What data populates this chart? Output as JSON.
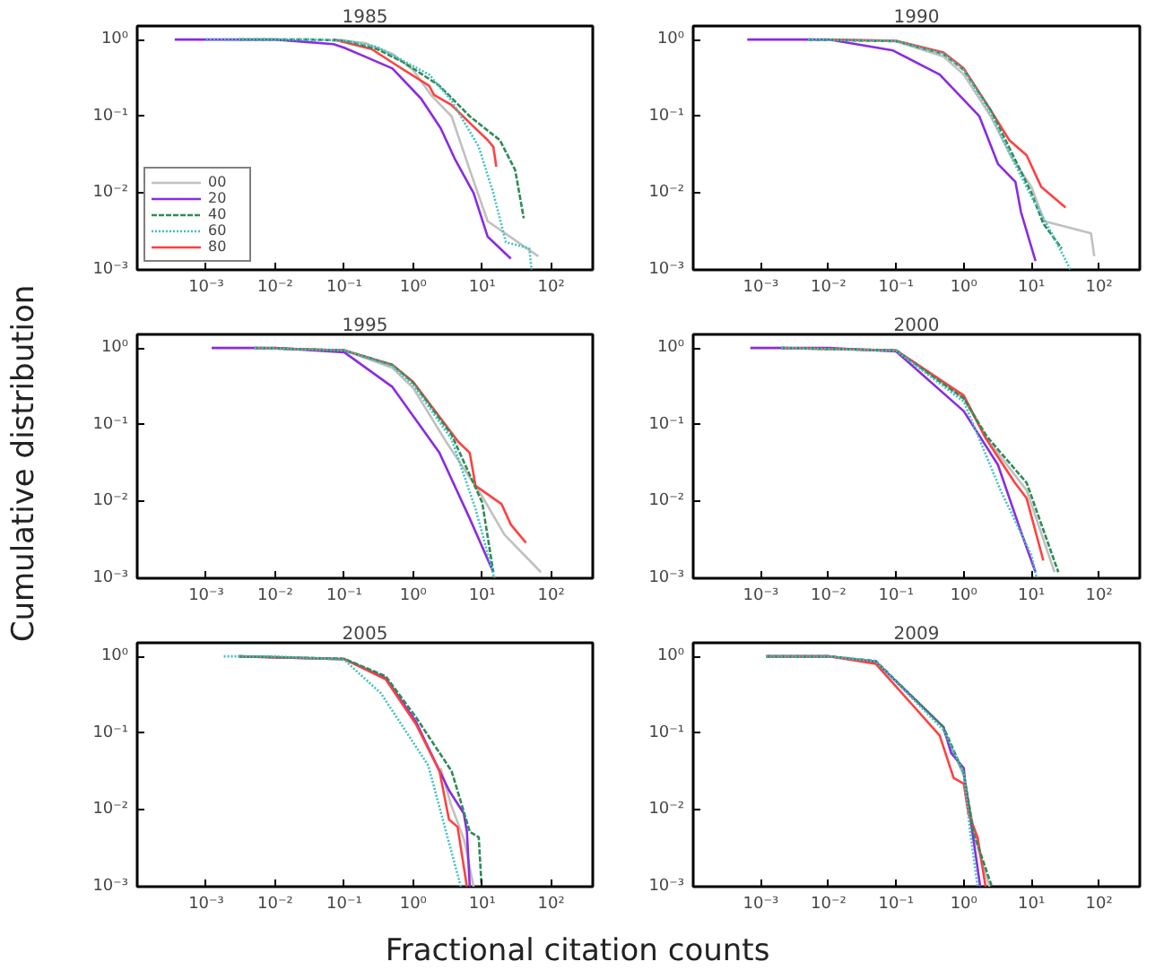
{
  "chart_data": [
    {
      "type": "line",
      "title": "1985",
      "log": "xy",
      "xlim": [
        0.0001,
        400
      ],
      "ylim": [
        0.001,
        1.5
      ],
      "xticks": [
        {
          "value": 0.001,
          "label": "10⁻³"
        },
        {
          "value": 0.01,
          "label": "10⁻²"
        },
        {
          "value": 0.1,
          "label": "10⁻¹"
        },
        {
          "value": 1,
          "label": "10⁰"
        },
        {
          "value": 10,
          "label": "10¹"
        },
        {
          "value": 100,
          "label": "10²"
        }
      ],
      "yticks": [
        {
          "value": 0.001,
          "label": "10⁻³"
        },
        {
          "value": 0.01,
          "label": "10⁻²"
        },
        {
          "value": 0.1,
          "label": "10⁻¹"
        },
        {
          "value": 1,
          "label": "10⁰"
        }
      ],
      "legend": "bottom left",
      "series": [
        {
          "name": "00",
          "color": "#c0c0c0",
          "line_style": "solid",
          "x": [
            0.07,
            0.2,
            0.5,
            1,
            1.8,
            3.6,
            6.6,
            12,
            65
          ],
          "values": [
            1,
            0.9,
            0.65,
            0.4,
            0.19,
            0.1,
            0.02,
            0.0043,
            0.0015
          ]
        },
        {
          "name": "20",
          "color": "#8a2be2",
          "line_style": "solid",
          "x": [
            0.00035,
            0.01,
            0.07,
            0.1,
            0.2,
            0.5,
            1.3,
            2.5,
            4,
            7.5,
            12,
            26
          ],
          "values": [
            1,
            1,
            0.87,
            0.78,
            0.6,
            0.42,
            0.17,
            0.07,
            0.028,
            0.01,
            0.0027,
            0.0014
          ]
        },
        {
          "name": "40",
          "color": "#2e8b57",
          "line_style": "dashed",
          "x": [
            0.003,
            0.03,
            0.1,
            0.3,
            0.74,
            2.4,
            6.6,
            18,
            30,
            40
          ],
          "values": [
            1,
            1,
            0.97,
            0.75,
            0.5,
            0.25,
            0.1,
            0.049,
            0.02,
            0.0047
          ]
        },
        {
          "name": "60",
          "color": "#40c0c0",
          "line_style": "dotted",
          "x": [
            0.001,
            0.03,
            0.1,
            0.3,
            1.7,
            3.6,
            8.9,
            14.5,
            22,
            48,
            52
          ],
          "values": [
            1,
            1,
            0.97,
            0.8,
            0.35,
            0.16,
            0.04,
            0.01,
            0.0023,
            0.0019,
            0.001
          ]
        },
        {
          "name": "80",
          "color": "#ff4040",
          "line_style": "solid",
          "x": [
            0.07,
            0.25,
            0.6,
            1.7,
            2,
            3.6,
            7.2,
            12,
            14.5,
            16
          ],
          "values": [
            1,
            0.75,
            0.45,
            0.25,
            0.19,
            0.14,
            0.076,
            0.049,
            0.04,
            0.022
          ]
        }
      ]
    },
    {
      "type": "line",
      "title": "1990",
      "log": "xy",
      "xlim": [
        0.0001,
        400
      ],
      "ylim": [
        0.001,
        1.5
      ],
      "xticks": [
        {
          "value": 0.001,
          "label": "10⁻³"
        },
        {
          "value": 0.01,
          "label": "10⁻²"
        },
        {
          "value": 0.1,
          "label": "10⁻¹"
        },
        {
          "value": 1,
          "label": "10⁰"
        },
        {
          "value": 10,
          "label": "10¹"
        },
        {
          "value": 100,
          "label": "10²"
        }
      ],
      "yticks": [
        {
          "value": 0.001,
          "label": "10⁻³"
        },
        {
          "value": 0.01,
          "label": "10⁻²"
        },
        {
          "value": 0.1,
          "label": "10⁻¹"
        },
        {
          "value": 1,
          "label": "10⁰"
        }
      ],
      "series": [
        {
          "color": "#c0c0c0",
          "line_style": "solid",
          "x": [
            0.1,
            0.5,
            1,
            2.5,
            5,
            10,
            15.5,
            76,
            85
          ],
          "values": [
            0.95,
            0.6,
            0.35,
            0.1,
            0.03,
            0.012,
            0.0043,
            0.003,
            0.0015
          ]
        },
        {
          "color": "#8a2be2",
          "line_style": "solid",
          "x": [
            0.00063,
            0.01,
            0.09,
            0.44,
            1.7,
            3.2,
            5.8,
            7,
            11.5
          ],
          "values": [
            1,
            1,
            0.72,
            0.35,
            0.1,
            0.024,
            0.014,
            0.0057,
            0.0013
          ]
        },
        {
          "color": "#2e8b57",
          "line_style": "dashed",
          "x": [
            0.005,
            0.1,
            0.5,
            1,
            2.5,
            5,
            10,
            15,
            28
          ],
          "values": [
            1,
            0.95,
            0.65,
            0.4,
            0.12,
            0.035,
            0.01,
            0.004,
            0.0019
          ]
        },
        {
          "color": "#40c0c0",
          "line_style": "dotted",
          "x": [
            0.005,
            0.1,
            0.5,
            1,
            2.5,
            5,
            10,
            20,
            38
          ],
          "values": [
            1,
            0.95,
            0.65,
            0.4,
            0.11,
            0.03,
            0.009,
            0.003,
            0.001
          ]
        },
        {
          "color": "#ff4040",
          "line_style": "solid",
          "x": [
            0.011,
            0.1,
            0.5,
            1,
            2.5,
            4.7,
            8.5,
            14,
            32
          ],
          "values": [
            1,
            0.96,
            0.68,
            0.42,
            0.12,
            0.049,
            0.031,
            0.012,
            0.0065
          ]
        }
      ]
    },
    {
      "type": "line",
      "title": "1995",
      "ylabel": "Cumulative distribution",
      "log": "xy",
      "xlim": [
        0.0001,
        400
      ],
      "ylim": [
        0.001,
        1.5
      ],
      "xticks": [
        {
          "value": 0.001,
          "label": "10⁻³"
        },
        {
          "value": 0.01,
          "label": "10⁻²"
        },
        {
          "value": 0.1,
          "label": "10⁻¹"
        },
        {
          "value": 1,
          "label": "10⁰"
        },
        {
          "value": 10,
          "label": "10¹"
        },
        {
          "value": 100,
          "label": "10²"
        }
      ],
      "yticks": [
        {
          "value": 0.001,
          "label": "10⁻³"
        },
        {
          "value": 0.01,
          "label": "10⁻²"
        },
        {
          "value": 0.1,
          "label": "10⁻¹"
        },
        {
          "value": 1,
          "label": "10⁰"
        }
      ],
      "series": [
        {
          "color": "#c0c0c0",
          "line_style": "solid",
          "x": [
            0.005,
            0.1,
            0.5,
            1,
            3,
            9.8,
            21,
            71
          ],
          "values": [
            1,
            0.93,
            0.55,
            0.3,
            0.06,
            0.012,
            0.0037,
            0.0012
          ]
        },
        {
          "color": "#8a2be2",
          "line_style": "solid",
          "x": [
            0.0012,
            0.01,
            0.1,
            0.5,
            2.4,
            6.6,
            14.5
          ],
          "values": [
            1,
            1,
            0.88,
            0.31,
            0.043,
            0.006,
            0.0012
          ]
        },
        {
          "color": "#2e8b57",
          "line_style": "dashed",
          "x": [
            0.005,
            0.1,
            0.5,
            1,
            3.6,
            10,
            14.5
          ],
          "values": [
            1,
            0.93,
            0.6,
            0.35,
            0.074,
            0.0097,
            0.0012
          ]
        },
        {
          "color": "#40c0c0",
          "line_style": "dotted",
          "x": [
            0.005,
            0.1,
            0.5,
            1,
            3.6,
            8,
            15
          ],
          "values": [
            1,
            0.93,
            0.58,
            0.33,
            0.065,
            0.008,
            0.001
          ]
        },
        {
          "color": "#ff4040",
          "line_style": "solid",
          "x": [
            0.006,
            0.1,
            0.5,
            1,
            4.5,
            6.6,
            8,
            19,
            26,
            43
          ],
          "values": [
            1,
            0.93,
            0.6,
            0.36,
            0.06,
            0.043,
            0.016,
            0.0093,
            0.005,
            0.0029
          ]
        }
      ]
    },
    {
      "type": "line",
      "title": "2000",
      "log": "xy",
      "xlim": [
        0.0001,
        400
      ],
      "ylim": [
        0.001,
        1.5
      ],
      "xticks": [
        {
          "value": 0.001,
          "label": "10⁻³"
        },
        {
          "value": 0.01,
          "label": "10⁻²"
        },
        {
          "value": 0.1,
          "label": "10⁻¹"
        },
        {
          "value": 1,
          "label": "10⁰"
        },
        {
          "value": 10,
          "label": "10¹"
        },
        {
          "value": 100,
          "label": "10²"
        }
      ],
      "yticks": [
        {
          "value": 0.001,
          "label": "10⁻³"
        },
        {
          "value": 0.01,
          "label": "10⁻²"
        },
        {
          "value": 0.1,
          "label": "10⁻¹"
        },
        {
          "value": 1,
          "label": "10⁰"
        }
      ],
      "series": [
        {
          "color": "#c0c0c0",
          "line_style": "solid",
          "x": [
            0.002,
            0.1,
            1,
            2.2,
            8.5,
            22
          ],
          "values": [
            1,
            0.93,
            0.22,
            0.065,
            0.014,
            0.0012
          ]
        },
        {
          "color": "#8a2be2",
          "line_style": "solid",
          "x": [
            0.0007,
            0.01,
            0.1,
            1,
            3.2,
            6.9,
            11.5
          ],
          "values": [
            1,
            1,
            0.9,
            0.15,
            0.03,
            0.0042,
            0.0012
          ]
        },
        {
          "color": "#2e8b57",
          "line_style": "dashed",
          "x": [
            0.002,
            0.1,
            1,
            2.2,
            8.5,
            25
          ],
          "values": [
            1,
            0.93,
            0.22,
            0.07,
            0.0175,
            0.0012
          ]
        },
        {
          "color": "#40c0c0",
          "line_style": "dotted",
          "x": [
            0.002,
            0.1,
            1,
            3.5,
            10,
            12
          ],
          "values": [
            1,
            0.92,
            0.2,
            0.014,
            0.002,
            0.001
          ]
        },
        {
          "color": "#ff4040",
          "line_style": "solid",
          "x": [
            0.002,
            0.1,
            1,
            2.1,
            5.7,
            8.5,
            15
          ],
          "values": [
            1,
            0.93,
            0.24,
            0.067,
            0.0175,
            0.011,
            0.0017
          ]
        }
      ]
    },
    {
      "type": "line",
      "title": "2005",
      "xlabel": "Fractional citation counts",
      "log": "xy",
      "xlim": [
        0.0001,
        400
      ],
      "ylim": [
        0.001,
        1.5
      ],
      "xticks": [
        {
          "value": 0.001,
          "label": "10⁻³"
        },
        {
          "value": 0.01,
          "label": "10⁻²"
        },
        {
          "value": 0.1,
          "label": "10⁻¹"
        },
        {
          "value": 1,
          "label": "10⁰"
        },
        {
          "value": 10,
          "label": "10¹"
        },
        {
          "value": 100,
          "label": "10²"
        }
      ],
      "yticks": [
        {
          "value": 0.001,
          "label": "10⁻³"
        },
        {
          "value": 0.01,
          "label": "10⁻²"
        },
        {
          "value": 0.1,
          "label": "10⁻¹"
        },
        {
          "value": 1,
          "label": "10⁰"
        }
      ],
      "series": [
        {
          "color": "#c0c0c0",
          "line_style": "solid",
          "x": [
            2.5,
            3.5,
            5.5,
            7.5
          ],
          "values": [
            0.035,
            0.012,
            0.004,
            0.001
          ]
        },
        {
          "color": "#8a2be2",
          "line_style": "solid",
          "x": [
            0.003,
            0.1,
            0.4,
            1.1,
            1.65,
            3.3,
            5.4,
            6,
            6.6
          ],
          "values": [
            1,
            0.92,
            0.52,
            0.14,
            0.065,
            0.018,
            0.009,
            0.0052,
            0.001
          ]
        },
        {
          "color": "#2e8b57",
          "line_style": "dashed",
          "x": [
            0.003,
            0.1,
            0.4,
            1.1,
            3.6,
            6.6,
            8.9,
            9.8
          ],
          "values": [
            1,
            0.93,
            0.55,
            0.16,
            0.032,
            0.0052,
            0.0044,
            0.001
          ]
        },
        {
          "color": "#40c0c0",
          "line_style": "dotted",
          "x": [
            0.0018,
            0.01,
            0.1,
            0.34,
            1.65,
            4.9
          ],
          "values": [
            1,
            1,
            0.9,
            0.33,
            0.038,
            0.001
          ]
        },
        {
          "color": "#ff4040",
          "line_style": "solid",
          "x": [
            0.0029,
            0.1,
            0.4,
            1.1,
            2.4,
            3.3,
            4.4,
            6
          ],
          "values": [
            1,
            0.92,
            0.5,
            0.13,
            0.032,
            0.0075,
            0.006,
            0.001
          ]
        }
      ]
    },
    {
      "type": "line",
      "title": "2009",
      "log": "xy",
      "xlim": [
        0.0001,
        400
      ],
      "ylim": [
        0.001,
        1.5
      ],
      "xticks": [
        {
          "value": 0.001,
          "label": "10⁻³"
        },
        {
          "value": 0.01,
          "label": "10⁻²"
        },
        {
          "value": 0.1,
          "label": "10⁻¹"
        },
        {
          "value": 1,
          "label": "10⁰"
        },
        {
          "value": 10,
          "label": "10¹"
        },
        {
          "value": 100,
          "label": "10²"
        }
      ],
      "yticks": [
        {
          "value": 0.001,
          "label": "10⁻³"
        },
        {
          "value": 0.01,
          "label": "10⁻²"
        },
        {
          "value": 0.1,
          "label": "10⁻¹"
        },
        {
          "value": 1,
          "label": "10⁰"
        }
      ],
      "series": [
        {
          "color": "#c0c0c0",
          "line_style": "solid",
          "x": [
            0.0012,
            0.01,
            0.05,
            0.5,
            1,
            1.5,
            2.4
          ],
          "values": [
            1,
            1,
            null,
            0.11,
            0.028,
            0.004,
            0.001
          ]
        },
        {
          "color": "#8a2be2",
          "line_style": "solid",
          "x": [
            0.0012,
            0.01,
            0.05,
            0.5,
            0.65,
            1,
            1.05,
            1.5,
            1.75
          ],
          "values": [
            1,
            1,
            0.85,
            0.12,
            0.055,
            0.035,
            0.022,
            0.0026,
            0.001
          ]
        },
        {
          "color": "#2e8b57",
          "line_style": "dashed",
          "x": [
            0.0012,
            0.01,
            0.05,
            0.5,
            1,
            1.4,
            2.6
          ],
          "values": [
            1,
            1,
            0.87,
            0.12,
            0.03,
            0.005,
            0.001
          ]
        },
        {
          "color": "#40c0c0",
          "line_style": "dotted",
          "x": [
            0.0012,
            0.01,
            0.05,
            0.5,
            1,
            1.25,
            1.6
          ],
          "values": [
            1,
            1,
            0.86,
            0.11,
            0.03,
            0.005,
            0.001
          ]
        },
        {
          "color": "#ff4040",
          "line_style": "solid",
          "x": [
            0.0012,
            0.01,
            0.05,
            0.44,
            0.71,
            1,
            1.17,
            1.6,
            2.1
          ],
          "values": [
            1,
            1,
            0.8,
            0.093,
            0.026,
            0.022,
            0.009,
            0.0044,
            0.001
          ]
        }
      ]
    }
  ]
}
